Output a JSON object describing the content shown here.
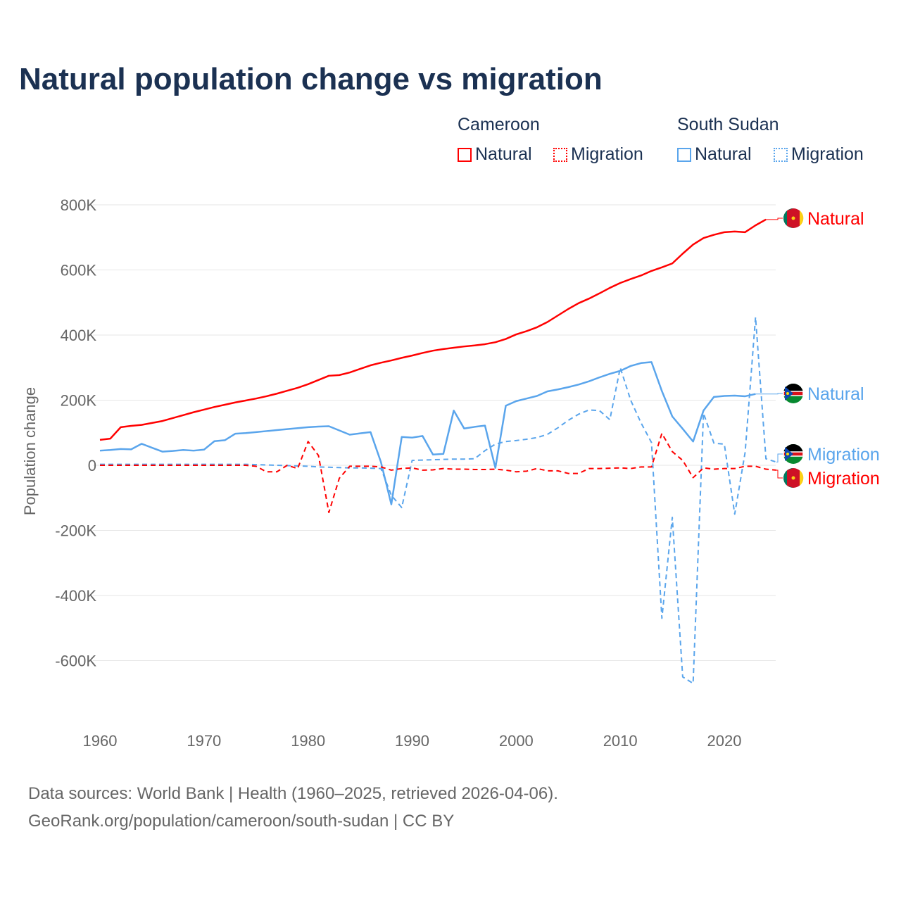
{
  "title": "Natural population change vs migration",
  "legend": {
    "groups": [
      {
        "name": "Cameroon",
        "items": [
          "Natural",
          "Migration"
        ]
      },
      {
        "name": "South Sudan",
        "items": [
          "Natural",
          "Migration"
        ]
      }
    ]
  },
  "source": {
    "line1": "Data sources: World Bank | Health (1960–2025, retrieved 2026-04-06).",
    "line2": "GeoRank.org/population/cameroon/south-sudan | CC BY"
  },
  "colors": {
    "cameroon": "#ff0000",
    "south_sudan": "#5aa5ec"
  },
  "chart_data": {
    "type": "line",
    "title": "Natural population change vs migration",
    "xlabel": "",
    "ylabel": "Population change",
    "xlim": [
      1960,
      2025
    ],
    "ylim": [
      -700000,
      850000
    ],
    "xticks": [
      {
        "v": 1960,
        "label": "1960"
      },
      {
        "v": 1970,
        "label": "1970"
      },
      {
        "v": 1980,
        "label": "1980"
      },
      {
        "v": 1990,
        "label": "1990"
      },
      {
        "v": 2000,
        "label": "2000"
      },
      {
        "v": 2010,
        "label": "2010"
      },
      {
        "v": 2020,
        "label": "2020"
      }
    ],
    "yticks": [
      {
        "v": 800000,
        "label": "800K"
      },
      {
        "v": 600000,
        "label": "600K"
      },
      {
        "v": 400000,
        "label": "400K"
      },
      {
        "v": 200000,
        "label": "200K"
      },
      {
        "v": 0,
        "label": "0"
      },
      {
        "v": -200000,
        "label": "-200K"
      },
      {
        "v": -400000,
        "label": "-400K"
      },
      {
        "v": -600000,
        "label": "-600K"
      }
    ],
    "grid": true,
    "legend_position": "top-right",
    "units": "thousands",
    "series": [
      {
        "name": "Cameroon Natural",
        "country": "cameroon",
        "kind": "Natural",
        "dashed": false,
        "end_label": "Natural",
        "start": 1960,
        "values": [
          78,
          82,
          117,
          121,
          124,
          130,
          136,
          145,
          154,
          163,
          171,
          179,
          186,
          193,
          199,
          205,
          212,
          220,
          229,
          238,
          249,
          262,
          275,
          277,
          285,
          296,
          307,
          315,
          322,
          330,
          337,
          345,
          352,
          357,
          361,
          365,
          368,
          372,
          378,
          388,
          402,
          412,
          424,
          440,
          460,
          480,
          498,
          512,
          528,
          545,
          560,
          572,
          583,
          597,
          608,
          620,
          650,
          678,
          698,
          708,
          716,
          718,
          716,
          737,
          755
        ]
      },
      {
        "name": "South Sudan Natural",
        "country": "south_sudan",
        "kind": "Natural",
        "dashed": false,
        "end_label": "Natural",
        "start": 1960,
        "values": [
          45,
          47,
          50,
          49,
          66,
          54,
          42,
          44,
          47,
          45,
          48,
          74,
          77,
          97,
          99,
          102,
          105,
          108,
          111,
          114,
          117,
          119,
          120,
          107,
          94,
          98,
          102,
          10,
          -120,
          87,
          85,
          90,
          33,
          35,
          168,
          113,
          118,
          122,
          -8,
          183,
          197,
          205,
          213,
          227,
          233,
          240,
          248,
          258,
          270,
          281,
          290,
          305,
          314,
          317,
          228,
          150,
          112,
          73,
          168,
          210,
          213,
          214,
          212,
          219
        ]
      },
      {
        "name": "South Sudan Migration",
        "country": "south_sudan",
        "kind": "Migration",
        "dashed": true,
        "end_label": "Migration",
        "start": 1960,
        "values": [
          3,
          3,
          3,
          3,
          3,
          3,
          3,
          3,
          3,
          3,
          3,
          3,
          3,
          3,
          3,
          2,
          1,
          0,
          -1,
          -2,
          -3,
          -5,
          -6,
          -7,
          -8,
          -8,
          -9,
          -10,
          -92,
          -130,
          15,
          16,
          17,
          18,
          19,
          19,
          20,
          45,
          65,
          73,
          76,
          80,
          85,
          95,
          115,
          138,
          157,
          170,
          168,
          140,
          300,
          200,
          130,
          70,
          -470,
          -160,
          -650,
          -670,
          160,
          68,
          65,
          -150,
          40,
          455,
          20,
          10
        ]
      },
      {
        "name": "Cameroon Migration",
        "country": "cameroon",
        "kind": "Migration",
        "dashed": true,
        "end_label": "Migration",
        "start": 1960,
        "values": [
          0,
          0,
          0,
          0,
          0,
          0,
          0,
          0,
          0,
          0,
          0,
          0,
          0,
          0,
          0,
          -3,
          -20,
          -20,
          0,
          -10,
          73,
          30,
          -145,
          -40,
          -3,
          -3,
          -3,
          -5,
          -15,
          -10,
          -8,
          -15,
          -14,
          -10,
          -12,
          -12,
          -13,
          -13,
          -12,
          -15,
          -20,
          -18,
          -10,
          -17,
          -17,
          -25,
          -25,
          -10,
          -10,
          -9,
          -8,
          -10,
          -5,
          -5,
          98,
          42,
          15,
          -38,
          -8,
          -12,
          -10,
          -10,
          -3,
          -3,
          -12,
          -15
        ]
      }
    ]
  }
}
